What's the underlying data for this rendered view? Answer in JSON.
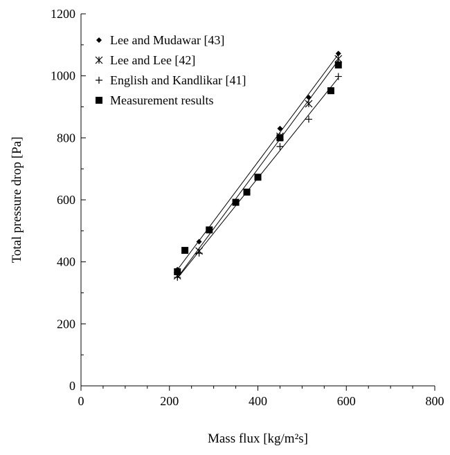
{
  "chart_data": {
    "type": "scatter",
    "title": "",
    "xlabel": "Mass flux [kg/m²s]",
    "ylabel": "Total pressure drop [Pa]",
    "xlim": [
      0,
      800
    ],
    "ylim": [
      0,
      1200
    ],
    "x_ticks": [
      0,
      200,
      400,
      600,
      800
    ],
    "y_ticks": [
      0,
      200,
      400,
      600,
      800,
      1000,
      1200
    ],
    "x_tick_labels": [
      "0",
      "200",
      "400",
      "600",
      "800"
    ],
    "y_tick_labels": [
      "0",
      "200",
      "400",
      "600",
      "800",
      "1000",
      "1200"
    ],
    "grid": false,
    "legend_position": "top-left",
    "series": [
      {
        "name": "Lee and Mudawar [43]",
        "marker": "diamond",
        "trendline": true,
        "x": [
          218,
          267,
          450,
          515,
          582
        ],
        "y": [
          375,
          465,
          830,
          930,
          1072
        ]
      },
      {
        "name": "Lee and Lee [42]",
        "marker": "asterisk",
        "trendline": true,
        "x": [
          218,
          267,
          450,
          515,
          582
        ],
        "y": [
          355,
          435,
          805,
          910,
          1055
        ]
      },
      {
        "name": "English and Kandlikar [41]",
        "marker": "plus",
        "trendline": true,
        "x": [
          218,
          267,
          450,
          515,
          582
        ],
        "y": [
          350,
          428,
          772,
          860,
          998
        ]
      },
      {
        "name": "Measurement results",
        "marker": "square",
        "trendline": false,
        "x": [
          218,
          235,
          290,
          350,
          375,
          400,
          450,
          565,
          582
        ],
        "y": [
          368,
          437,
          503,
          592,
          625,
          673,
          800,
          952,
          1035
        ]
      }
    ]
  }
}
